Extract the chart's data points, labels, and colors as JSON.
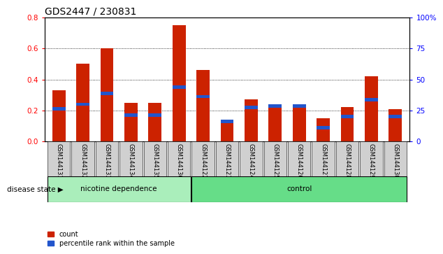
{
  "title": "GDS2447 / 230831",
  "categories": [
    "GSM144131",
    "GSM144132",
    "GSM144133",
    "GSM144134",
    "GSM144135",
    "GSM144136",
    "GSM144122",
    "GSM144123",
    "GSM144124",
    "GSM144125",
    "GSM144126",
    "GSM144127",
    "GSM144128",
    "GSM144129",
    "GSM144130"
  ],
  "red_values": [
    0.33,
    0.5,
    0.6,
    0.25,
    0.25,
    0.75,
    0.46,
    0.13,
    0.27,
    0.23,
    0.23,
    0.15,
    0.22,
    0.42,
    0.21
  ],
  "blue_values": [
    0.21,
    0.24,
    0.31,
    0.17,
    0.17,
    0.35,
    0.29,
    0.13,
    0.22,
    0.23,
    0.23,
    0.09,
    0.16,
    0.27,
    0.16
  ],
  "ylim_left": [
    0,
    0.8
  ],
  "ylim_right": [
    0,
    100
  ],
  "yticks_left": [
    0.0,
    0.2,
    0.4,
    0.6,
    0.8
  ],
  "yticks_right": [
    0,
    25,
    50,
    75,
    100
  ],
  "ytick_labels_right": [
    "0",
    "25",
    "50",
    "75",
    "100%"
  ],
  "group1_label": "nicotine dependence",
  "group2_label": "control",
  "group1_count": 6,
  "group2_count": 9,
  "disease_state_label": "disease state",
  "legend_count_label": "count",
  "legend_percentile_label": "percentile rank within the sample",
  "bar_color": "#cc2200",
  "blue_color": "#2255cc",
  "group1_bg": "#aaeebb",
  "group2_bg": "#66dd88",
  "tick_bg": "#d0d0d0",
  "title_fontsize": 10,
  "tick_fontsize": 7.5,
  "bar_width": 0.55
}
